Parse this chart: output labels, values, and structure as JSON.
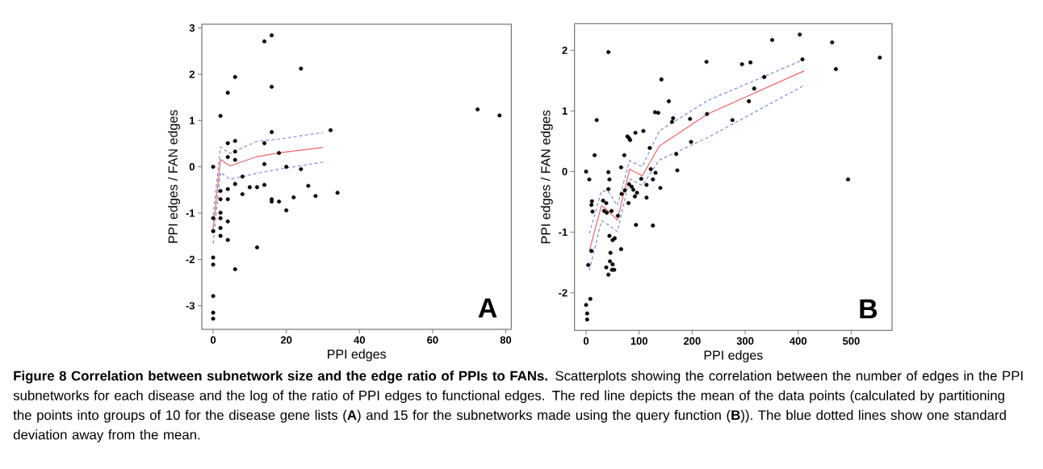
{
  "chart_data": [
    {
      "type": "scatter",
      "xlabel": "PPI edges",
      "ylabel": "PPI edges / FAN edges",
      "xlim": [
        -3.1,
        81.5
      ],
      "ylim": [
        -3.51,
        3.08
      ],
      "xticks": [
        0,
        20,
        40,
        60,
        80
      ],
      "yticks": [
        -3,
        -2,
        -1,
        0,
        1,
        2,
        3
      ],
      "grid": false,
      "annotations": [
        "A"
      ],
      "series": [
        {
          "marker": "circle",
          "color": "#000000",
          "x": [
            14,
            16,
            24,
            6,
            16,
            4,
            2,
            72.3,
            78.3,
            32.1,
            16,
            4,
            6,
            14,
            4,
            6,
            6,
            18,
            14,
            0,
            20,
            24,
            8,
            6,
            4,
            2,
            10,
            12,
            14,
            26,
            8,
            2,
            4,
            16,
            16,
            18,
            22,
            28,
            34,
            20,
            0,
            2,
            2,
            4,
            2,
            0,
            2,
            4,
            12,
            0,
            0,
            6,
            0,
            0,
            0
          ],
          "values": [
            2.71,
            2.84,
            2.12,
            1.94,
            1.73,
            1.6,
            1.1,
            1.24,
            1.11,
            0.79,
            0.75,
            0.51,
            0.56,
            0.51,
            0.21,
            0.33,
            0.15,
            0.3,
            0.06,
            0.0,
            0.0,
            -0.05,
            -0.21,
            -0.37,
            -0.48,
            -0.52,
            -0.44,
            -0.44,
            -0.39,
            -0.41,
            -0.59,
            -0.7,
            -0.7,
            -0.7,
            -0.75,
            -0.75,
            -0.66,
            -0.63,
            -0.56,
            -0.94,
            -1.11,
            -0.99,
            -1.11,
            -1.18,
            -1.32,
            -1.39,
            -1.49,
            -1.58,
            -1.74,
            -1.96,
            -2.11,
            -2.21,
            -2.79,
            -3.15,
            -3.28
          ]
        },
        {
          "type": "line",
          "marker": "none",
          "color": "#f0626a",
          "line_style": "solid",
          "x": [
            0,
            2,
            4.6,
            12,
            18,
            30
          ],
          "values": [
            -1.35,
            0.16,
            0.02,
            0.22,
            0.3,
            0.42
          ]
        },
        {
          "type": "line",
          "marker": "none",
          "color": "#7b8fd6",
          "line_style": "dashed",
          "x": [
            0,
            2,
            4.6,
            12,
            18,
            30
          ],
          "values": [
            -1.05,
            0.43,
            0.29,
            0.55,
            0.6,
            0.74
          ]
        },
        {
          "type": "line",
          "marker": "none",
          "color": "#7b8fd6",
          "line_style": "dashed",
          "x": [
            0,
            2,
            4.6,
            12,
            18,
            30
          ],
          "values": [
            -1.66,
            -0.12,
            -0.27,
            -0.14,
            -0.05,
            0.1
          ]
        }
      ]
    },
    {
      "type": "scatter",
      "xlabel": "PPI edges",
      "ylabel": "PPI edges / FAN edges",
      "xlim": [
        -21.8,
        577
      ],
      "ylim": [
        -2.62,
        2.44
      ],
      "xticks": [
        0,
        100,
        200,
        300,
        400,
        500
      ],
      "yticks": [
        -2,
        -1,
        0,
        1,
        2
      ],
      "grid": false,
      "annotations": [
        "B",
        "Figure 8 Correlation between subnetwork size and the edge ratio of PPIs to FANs.",
        "Scatterplots showing the correlation between the number of edges in the PPI subnetworks for each disease and the log of the ratio of PPI edges to functional edges. The red line depicts the mean of the data points (calculated by partitioning the points into groups of 10 for the disease gene lists (**A**) and 15 for the subnetworks made using the query function (**B**)). The blue dotted lines show one standard deviation away from the mean."
      ],
      "series": [
        {
          "marker": "circle",
          "color": "#000000",
          "x": [
            0,
            6,
            0,
            2,
            2,
            8,
            4,
            10,
            11,
            10,
            12,
            16,
            20,
            42,
            42,
            44,
            42,
            32,
            38,
            34,
            39,
            48,
            44,
            54,
            50,
            46,
            45,
            50,
            38,
            49,
            53,
            42,
            60,
            66,
            66,
            72,
            67,
            73,
            80,
            78,
            81,
            83,
            93,
            81,
            86,
            89,
            92,
            96,
            94,
            104,
            108,
            114,
            114,
            120,
            122,
            126,
            126,
            130,
            136,
            131,
            140,
            142,
            156,
            162,
            164,
            170,
            172,
            196,
            198,
            227,
            228,
            276,
            294,
            307,
            310,
            317,
            336,
            351,
            403,
            408,
            464,
            471,
            494,
            554
          ],
          "values": [
            0,
            -0.13,
            -2.2,
            -2.34,
            -2.44,
            -2.1,
            -1.54,
            -1.31,
            -0.49,
            -0.55,
            -0.66,
            0.27,
            0.85,
            1.97,
            -0.01,
            -0.13,
            -0.29,
            -0.48,
            -0.52,
            -0.65,
            -0.68,
            -0.65,
            -1.06,
            -1.1,
            -1.13,
            -1.34,
            -1.48,
            -1.53,
            -1.58,
            -1.62,
            -1.62,
            -1.7,
            -0.73,
            0.07,
            -1.28,
            0.27,
            -0.37,
            -0.31,
            -0.52,
            0.58,
            0.55,
            0.52,
            0.64,
            -0.21,
            -0.25,
            -0.3,
            -0.41,
            -0.35,
            -0.88,
            -0.12,
            0.67,
            -0.22,
            -0.43,
            0.39,
            0.04,
            -0.13,
            -0.89,
            0.98,
            0.97,
            -0.02,
            -0.27,
            1.52,
            1.16,
            0.82,
            0.88,
            0.29,
            0.02,
            0.87,
            0.49,
            1.81,
            0.95,
            0.85,
            1.77,
            1.16,
            1.8,
            1.37,
            1.56,
            2.17,
            2.26,
            1.85,
            2.13,
            1.69,
            -0.13,
            1.88
          ]
        },
        {
          "type": "line",
          "marker": "none",
          "color": "#f0626a",
          "line_style": "solid",
          "x": [
            6,
            29,
            42,
            59,
            82,
            106,
            138,
            229,
            411
          ],
          "values": [
            -1.31,
            -0.56,
            -0.65,
            -0.8,
            0.04,
            -0.07,
            0.42,
            0.95,
            1.66
          ]
        },
        {
          "type": "line",
          "marker": "none",
          "color": "#7b8fd6",
          "line_style": "dashed",
          "x": [
            6,
            29,
            42,
            59,
            82,
            106,
            138,
            229,
            411
          ],
          "values": [
            -1.02,
            -0.32,
            -0.33,
            -0.56,
            0.18,
            0.08,
            0.67,
            1.17,
            1.85
          ]
        },
        {
          "type": "line",
          "marker": "none",
          "color": "#7b8fd6",
          "line_style": "dashed",
          "x": [
            6,
            29,
            42,
            59,
            82,
            106,
            138,
            229,
            411
          ],
          "values": [
            -1.63,
            -0.81,
            -0.88,
            -0.99,
            -0.12,
            -0.23,
            0.19,
            0.56,
            1.42
          ]
        }
      ]
    }
  ]
}
